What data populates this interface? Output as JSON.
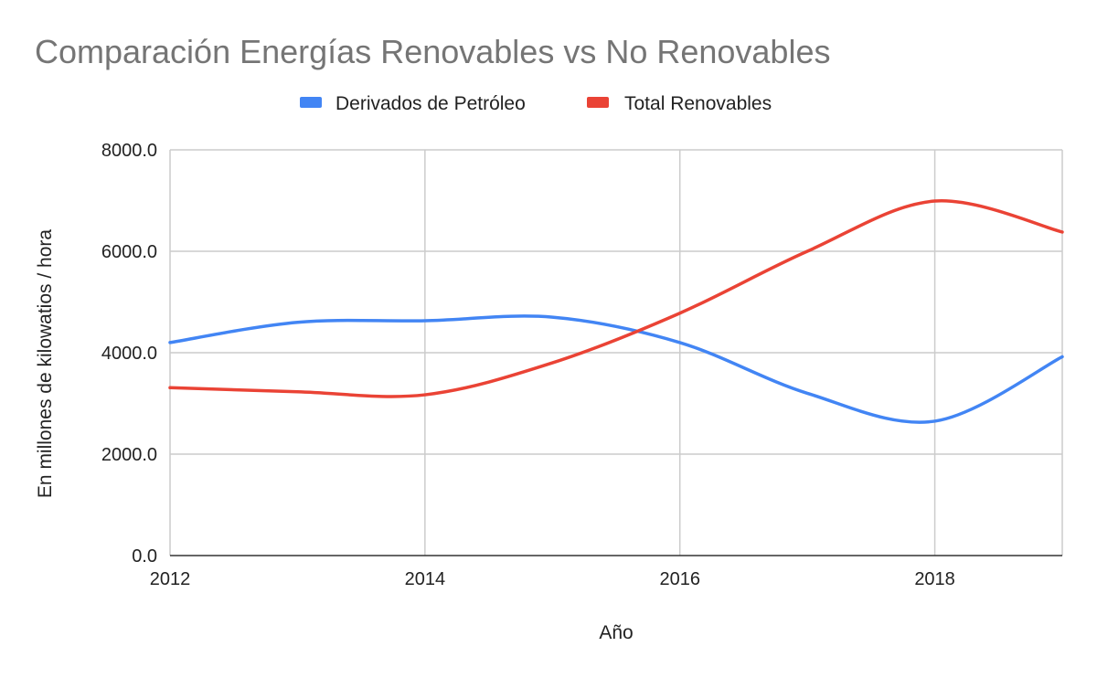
{
  "chart_data": {
    "type": "line",
    "title": "Comparación Energías Renovables vs No Renovables",
    "xlabel": "Año",
    "ylabel": "En millones de kilowatios / hora",
    "x": [
      2012,
      2013,
      2014,
      2015,
      2016,
      2017,
      2018,
      2019
    ],
    "xlim": [
      2012,
      2019
    ],
    "xticks": [
      "2012",
      "2014",
      "2016",
      "2018"
    ],
    "ylim": [
      0,
      8000
    ],
    "yticks": [
      "0.0",
      "2000.0",
      "4000.0",
      "6000.0",
      "8000.0"
    ],
    "grid": true,
    "legend_position": "top",
    "series": [
      {
        "name": "Derivados de Petróleo",
        "color": "#4285f4",
        "values": [
          4200,
          4600,
          4630,
          4700,
          4200,
          3200,
          2650,
          3920
        ]
      },
      {
        "name": "Total Renovables",
        "color": "#ea4335",
        "values": [
          3310,
          3230,
          3170,
          3800,
          4780,
          6000,
          6990,
          6380
        ]
      }
    ]
  }
}
